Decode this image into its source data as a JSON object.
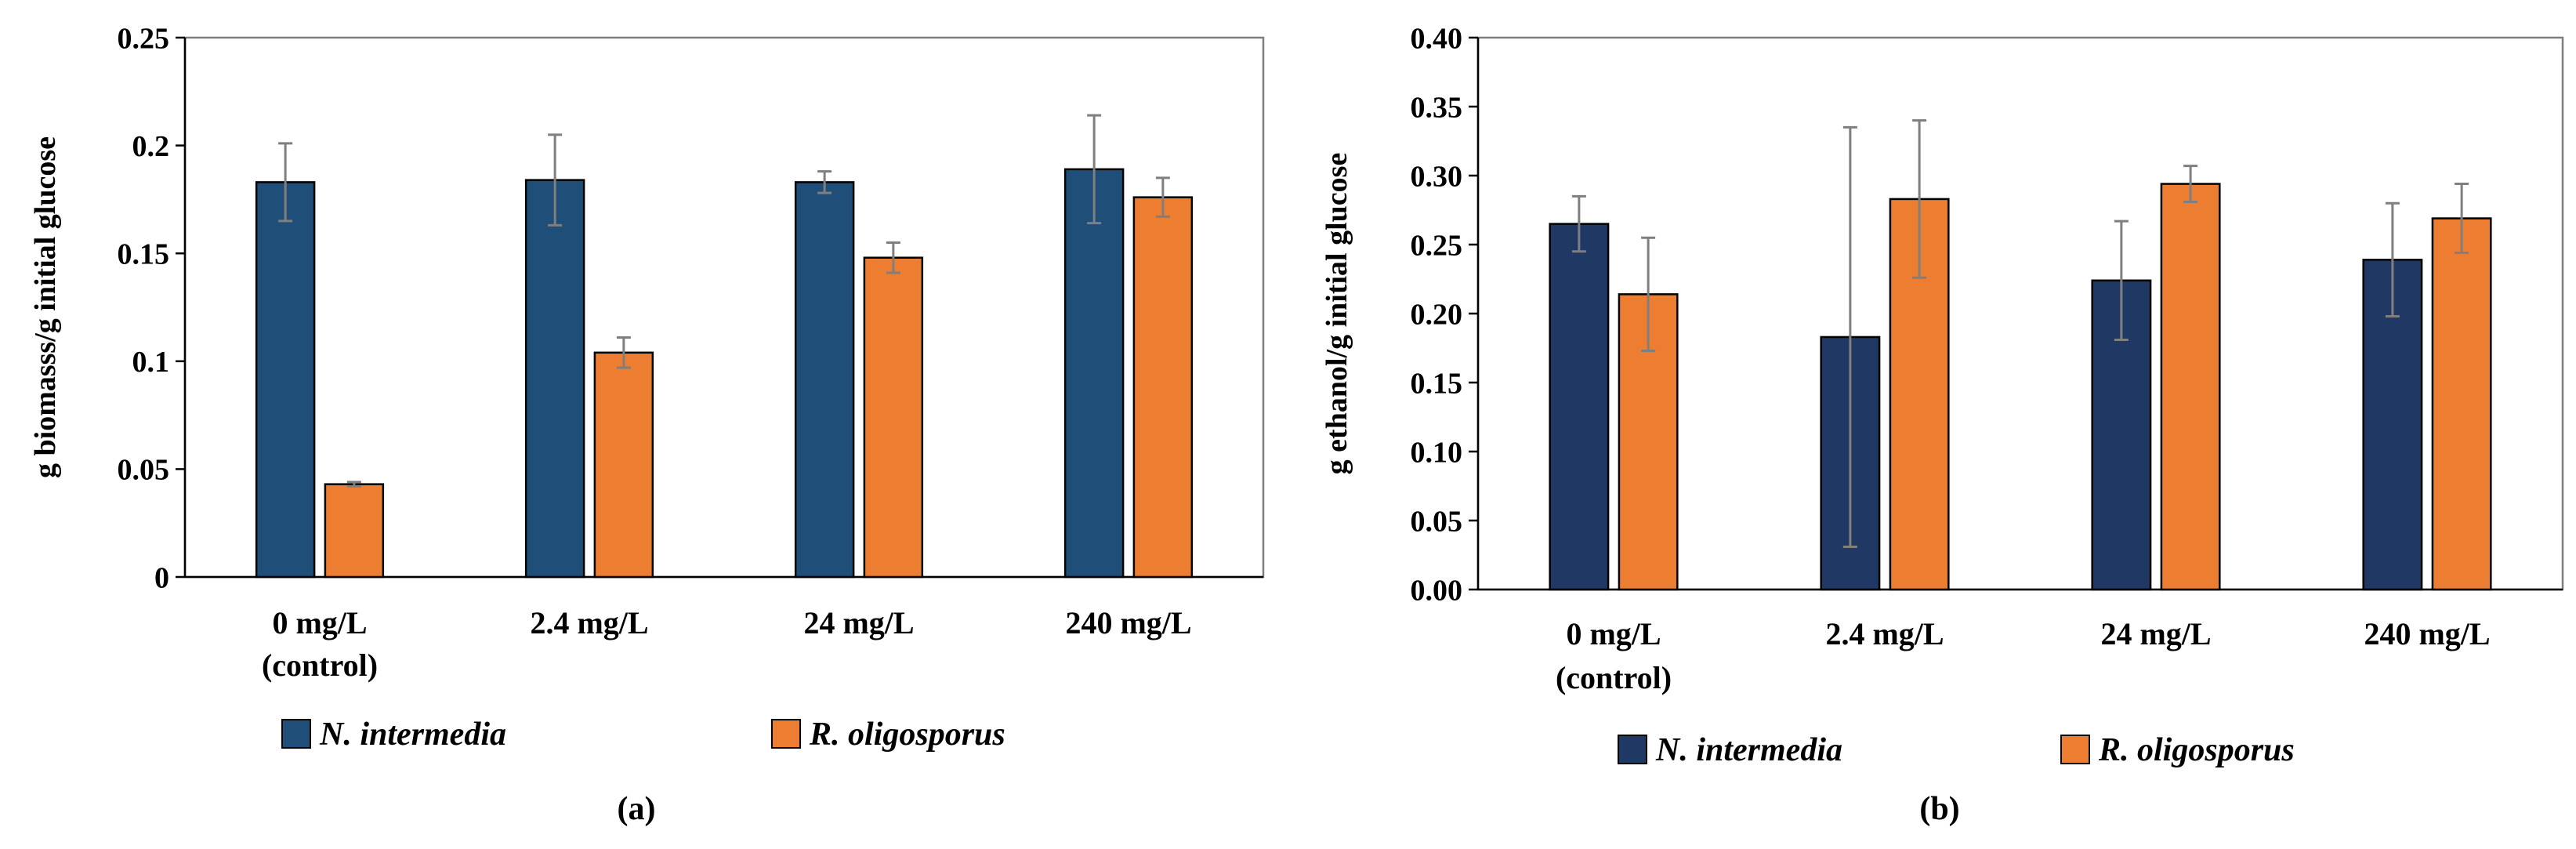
{
  "chart_data": [
    {
      "type": "bar",
      "panel_label": "(a)",
      "ylabel": "g biomasss/g initial glucose",
      "ylim": [
        0,
        0.25
      ],
      "yticks": [
        "0",
        "0.05",
        "0.1",
        "0.15",
        "0.2",
        "0.25"
      ],
      "categories": [
        [
          "0 mg/L",
          "(control)"
        ],
        [
          "2.4 mg/L"
        ],
        [
          "24 mg/L"
        ],
        [
          "240 mg/L"
        ]
      ],
      "series": [
        {
          "name": "N. intermedia",
          "color": "#1f4e79",
          "values": [
            0.183,
            0.184,
            0.183,
            0.189
          ],
          "errors": [
            0.018,
            0.021,
            0.005,
            0.025
          ]
        },
        {
          "name": "R. oligosporus",
          "color": "#ed7d31",
          "values": [
            0.043,
            0.104,
            0.148,
            0.176
          ],
          "errors": [
            0.001,
            0.007,
            0.007,
            0.009
          ]
        }
      ],
      "legend": "bottom"
    },
    {
      "type": "bar",
      "panel_label": "(b)",
      "ylabel": "g ethanol/g initial glucose",
      "ylim": [
        0,
        0.4
      ],
      "yticks": [
        "0.00",
        "0.05",
        "0.10",
        "0.15",
        "0.20",
        "0.25",
        "0.30",
        "0.35",
        "0.40"
      ],
      "categories": [
        [
          "0 mg/L",
          "(control)"
        ],
        [
          "2.4 mg/L"
        ],
        [
          "24 mg/L"
        ],
        [
          "240 mg/L"
        ]
      ],
      "series": [
        {
          "name": "N. intermedia",
          "color": "#1f3864",
          "values": [
            0.265,
            0.183,
            0.224,
            0.239
          ],
          "errors": [
            0.02,
            0.152,
            0.043,
            0.041
          ]
        },
        {
          "name": "R. oligosporus",
          "color": "#ed7d31",
          "values": [
            0.214,
            0.283,
            0.294,
            0.269
          ],
          "errors": [
            0.041,
            0.057,
            0.013,
            0.025
          ]
        }
      ],
      "legend": "bottom"
    }
  ]
}
